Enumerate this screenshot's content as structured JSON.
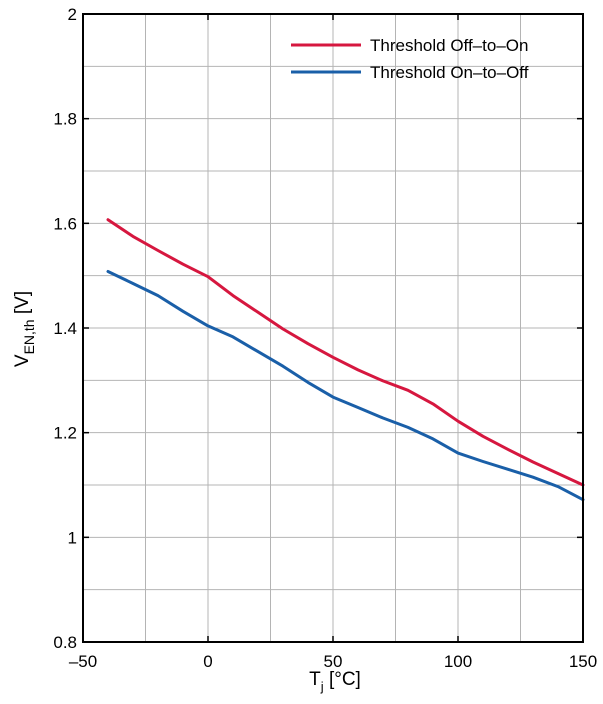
{
  "chart_data": {
    "type": "line",
    "title": "",
    "xlabel": {
      "main": "T",
      "sub": "j",
      "unit": " [°C]"
    },
    "ylabel": {
      "main": "V",
      "sub": "EN,th",
      "unit": " [V]"
    },
    "xlim": [
      -50,
      150
    ],
    "ylim": [
      0.8,
      2.0
    ],
    "x_ticks": [
      -50,
      0,
      50,
      100,
      150
    ],
    "x_tick_labels": [
      "–50",
      "0",
      "50",
      "100",
      "150"
    ],
    "y_ticks": [
      0.8,
      1.0,
      1.2,
      1.4,
      1.6,
      1.8,
      2.0
    ],
    "y_tick_labels": [
      "0.8",
      "1",
      "1.2",
      "1.4",
      "1.6",
      "1.8",
      "2"
    ],
    "x_grid_step": 25,
    "y_grid_step": 0.1,
    "grid": true,
    "legend_position": "top-right",
    "series": [
      {
        "name": "Threshold Off–to–On",
        "color": "#d6173f",
        "points": [
          [
            -40,
            1.607
          ],
          [
            -30,
            1.575
          ],
          [
            -20,
            1.548
          ],
          [
            -10,
            1.522
          ],
          [
            0,
            1.498
          ],
          [
            10,
            1.462
          ],
          [
            20,
            1.43
          ],
          [
            30,
            1.398
          ],
          [
            40,
            1.37
          ],
          [
            50,
            1.344
          ],
          [
            60,
            1.32
          ],
          [
            70,
            1.299
          ],
          [
            80,
            1.281
          ],
          [
            90,
            1.255
          ],
          [
            100,
            1.222
          ],
          [
            110,
            1.193
          ],
          [
            120,
            1.168
          ],
          [
            130,
            1.144
          ],
          [
            140,
            1.122
          ],
          [
            150,
            1.1
          ]
        ]
      },
      {
        "name": "Threshold On–to–Off",
        "color": "#1a5fa8",
        "points": [
          [
            -40,
            1.508
          ],
          [
            -30,
            1.485
          ],
          [
            -20,
            1.462
          ],
          [
            -10,
            1.432
          ],
          [
            0,
            1.404
          ],
          [
            10,
            1.383
          ],
          [
            20,
            1.355
          ],
          [
            30,
            1.327
          ],
          [
            40,
            1.296
          ],
          [
            50,
            1.268
          ],
          [
            60,
            1.248
          ],
          [
            70,
            1.228
          ],
          [
            80,
            1.21
          ],
          [
            90,
            1.188
          ],
          [
            100,
            1.161
          ],
          [
            110,
            1.145
          ],
          [
            120,
            1.13
          ],
          [
            130,
            1.115
          ],
          [
            140,
            1.097
          ],
          [
            150,
            1.072
          ]
        ]
      }
    ]
  }
}
